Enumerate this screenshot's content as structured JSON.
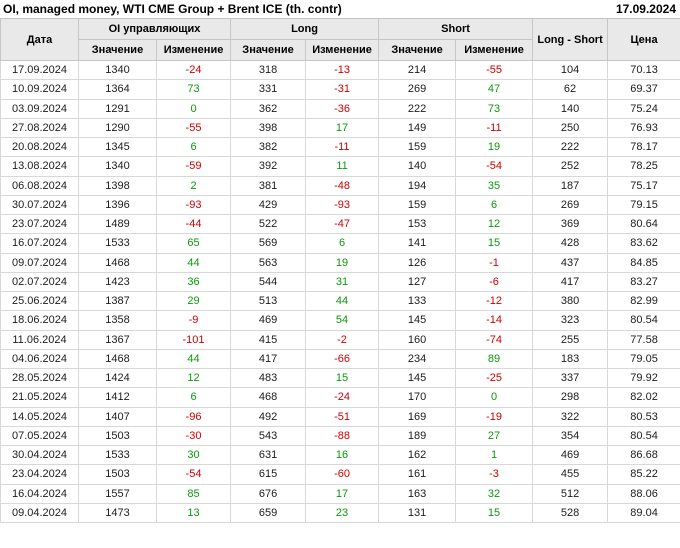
{
  "title": "OI, managed money, WTI CME Group + Brent ICE (th. contr)",
  "report_date": "17.09.2024",
  "chart_data": {
    "type": "table",
    "title": "OI, managed money, WTI CME Group + Brent ICE (th. contr)",
    "as_of_date": "17.09.2024",
    "header": {
      "date_col": "Дата",
      "groups": [
        {
          "label": "OI управляющих"
        },
        {
          "label": "Long"
        },
        {
          "label": "Short"
        }
      ],
      "sub_value": "Значение",
      "sub_change": "Изменение",
      "long_short_col": "Long - Short",
      "price_col": "Цена"
    },
    "rows": [
      {
        "date": "17.09.2024",
        "oi": 1340,
        "oi_change": -24,
        "long": 318,
        "long_change": -13,
        "short": 214,
        "short_change": -55,
        "long_short": 104,
        "price": "70.13"
      },
      {
        "date": "10.09.2024",
        "oi": 1364,
        "oi_change": 73,
        "long": 331,
        "long_change": -31,
        "short": 269,
        "short_change": 47,
        "long_short": 62,
        "price": "69.37"
      },
      {
        "date": "03.09.2024",
        "oi": 1291,
        "oi_change": 0,
        "long": 362,
        "long_change": -36,
        "short": 222,
        "short_change": 73,
        "long_short": 140,
        "price": "75.24"
      },
      {
        "date": "27.08.2024",
        "oi": 1290,
        "oi_change": -55,
        "long": 398,
        "long_change": 17,
        "short": 149,
        "short_change": -11,
        "long_short": 250,
        "price": "76.93"
      },
      {
        "date": "20.08.2024",
        "oi": 1345,
        "oi_change": 6,
        "long": 382,
        "long_change": -11,
        "short": 159,
        "short_change": 19,
        "long_short": 222,
        "price": "78.17"
      },
      {
        "date": "13.08.2024",
        "oi": 1340,
        "oi_change": -59,
        "long": 392,
        "long_change": 11,
        "short": 140,
        "short_change": -54,
        "long_short": 252,
        "price": "78.25"
      },
      {
        "date": "06.08.2024",
        "oi": 1398,
        "oi_change": 2,
        "long": 381,
        "long_change": -48,
        "short": 194,
        "short_change": 35,
        "long_short": 187,
        "price": "75.17"
      },
      {
        "date": "30.07.2024",
        "oi": 1396,
        "oi_change": -93,
        "long": 429,
        "long_change": -93,
        "short": 159,
        "short_change": 6,
        "long_short": 269,
        "price": "79.15"
      },
      {
        "date": "23.07.2024",
        "oi": 1489,
        "oi_change": -44,
        "long": 522,
        "long_change": -47,
        "short": 153,
        "short_change": 12,
        "long_short": 369,
        "price": "80.64"
      },
      {
        "date": "16.07.2024",
        "oi": 1533,
        "oi_change": 65,
        "long": 569,
        "long_change": 6,
        "short": 141,
        "short_change": 15,
        "long_short": 428,
        "price": "83.62"
      },
      {
        "date": "09.07.2024",
        "oi": 1468,
        "oi_change": 44,
        "long": 563,
        "long_change": 19,
        "short": 126,
        "short_change": -1,
        "long_short": 437,
        "price": "84.85"
      },
      {
        "date": "02.07.2024",
        "oi": 1423,
        "oi_change": 36,
        "long": 544,
        "long_change": 31,
        "short": 127,
        "short_change": -6,
        "long_short": 417,
        "price": "83.27"
      },
      {
        "date": "25.06.2024",
        "oi": 1387,
        "oi_change": 29,
        "long": 513,
        "long_change": 44,
        "short": 133,
        "short_change": -12,
        "long_short": 380,
        "price": "82.99"
      },
      {
        "date": "18.06.2024",
        "oi": 1358,
        "oi_change": -9,
        "long": 469,
        "long_change": 54,
        "short": 145,
        "short_change": -14,
        "long_short": 323,
        "price": "80.54"
      },
      {
        "date": "11.06.2024",
        "oi": 1367,
        "oi_change": -101,
        "long": 415,
        "long_change": -2,
        "short": 160,
        "short_change": -74,
        "long_short": 255,
        "price": "77.58"
      },
      {
        "date": "04.06.2024",
        "oi": 1468,
        "oi_change": 44,
        "long": 417,
        "long_change": -66,
        "short": 234,
        "short_change": 89,
        "long_short": 183,
        "price": "79.05"
      },
      {
        "date": "28.05.2024",
        "oi": 1424,
        "oi_change": 12,
        "long": 483,
        "long_change": 15,
        "short": 145,
        "short_change": -25,
        "long_short": 337,
        "price": "79.92"
      },
      {
        "date": "21.05.2024",
        "oi": 1412,
        "oi_change": 6,
        "long": 468,
        "long_change": -24,
        "short": 170,
        "short_change": 0,
        "long_short": 298,
        "price": "82.02"
      },
      {
        "date": "14.05.2024",
        "oi": 1407,
        "oi_change": -96,
        "long": 492,
        "long_change": -51,
        "short": 169,
        "short_change": -19,
        "long_short": 322,
        "price": "80.53"
      },
      {
        "date": "07.05.2024",
        "oi": 1503,
        "oi_change": -30,
        "long": 543,
        "long_change": -88,
        "short": 189,
        "short_change": 27,
        "long_short": 354,
        "price": "80.54"
      },
      {
        "date": "30.04.2024",
        "oi": 1533,
        "oi_change": 30,
        "long": 631,
        "long_change": 16,
        "short": 162,
        "short_change": 1,
        "long_short": 469,
        "price": "86.68"
      },
      {
        "date": "23.04.2024",
        "oi": 1503,
        "oi_change": -54,
        "long": 615,
        "long_change": -60,
        "short": 161,
        "short_change": -3,
        "long_short": 455,
        "price": "85.22"
      },
      {
        "date": "16.04.2024",
        "oi": 1557,
        "oi_change": 85,
        "long": 676,
        "long_change": 17,
        "short": 163,
        "short_change": 32,
        "long_short": 512,
        "price": "88.06"
      },
      {
        "date": "09.04.2024",
        "oi": 1473,
        "oi_change": 13,
        "long": 659,
        "long_change": 23,
        "short": 131,
        "short_change": 15,
        "long_short": 528,
        "price": "89.04"
      }
    ]
  },
  "colors": {
    "positive_change": "#0a9a0a",
    "negative_change": "#cc0000",
    "header_background": "#e9e9e9",
    "grid_border": "#c6c6c6"
  }
}
